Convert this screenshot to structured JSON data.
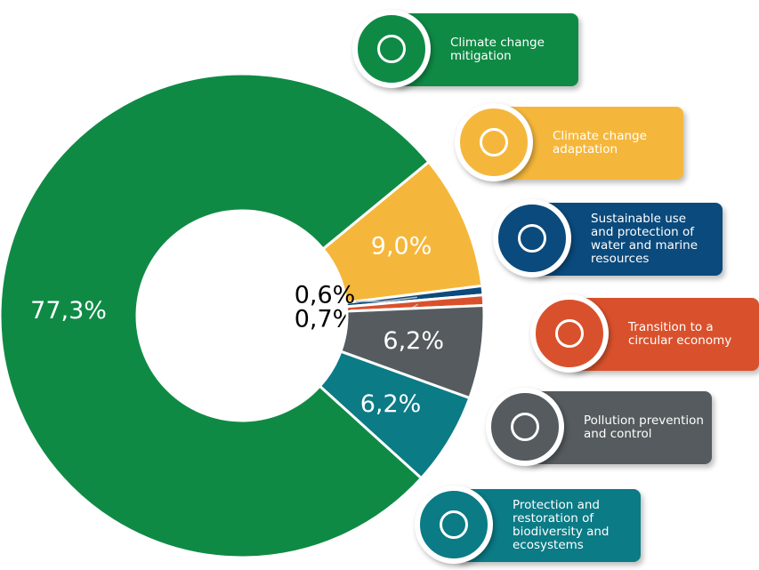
{
  "chart_data": {
    "type": "donut",
    "categories": [
      "Climate change mitigation",
      "Climate change adaptation",
      "Sustainable use and protection of water and marine resources",
      "Transition to a circular economy",
      "Pollution prevention and control",
      "Protection and restoration of biodiversity and ecosystems"
    ],
    "values": [
      77.3,
      9.0,
      0.6,
      0.7,
      6.2,
      6.2
    ],
    "value_labels": [
      "77,3%",
      "9,0%",
      "0,6%",
      "0,7%",
      "6,2%",
      "6,2%"
    ],
    "colors": [
      "#0f8a45",
      "#f5b73b",
      "#0b4a7c",
      "#d9512c",
      "#555b5e",
      "#0b7b86"
    ]
  }
}
